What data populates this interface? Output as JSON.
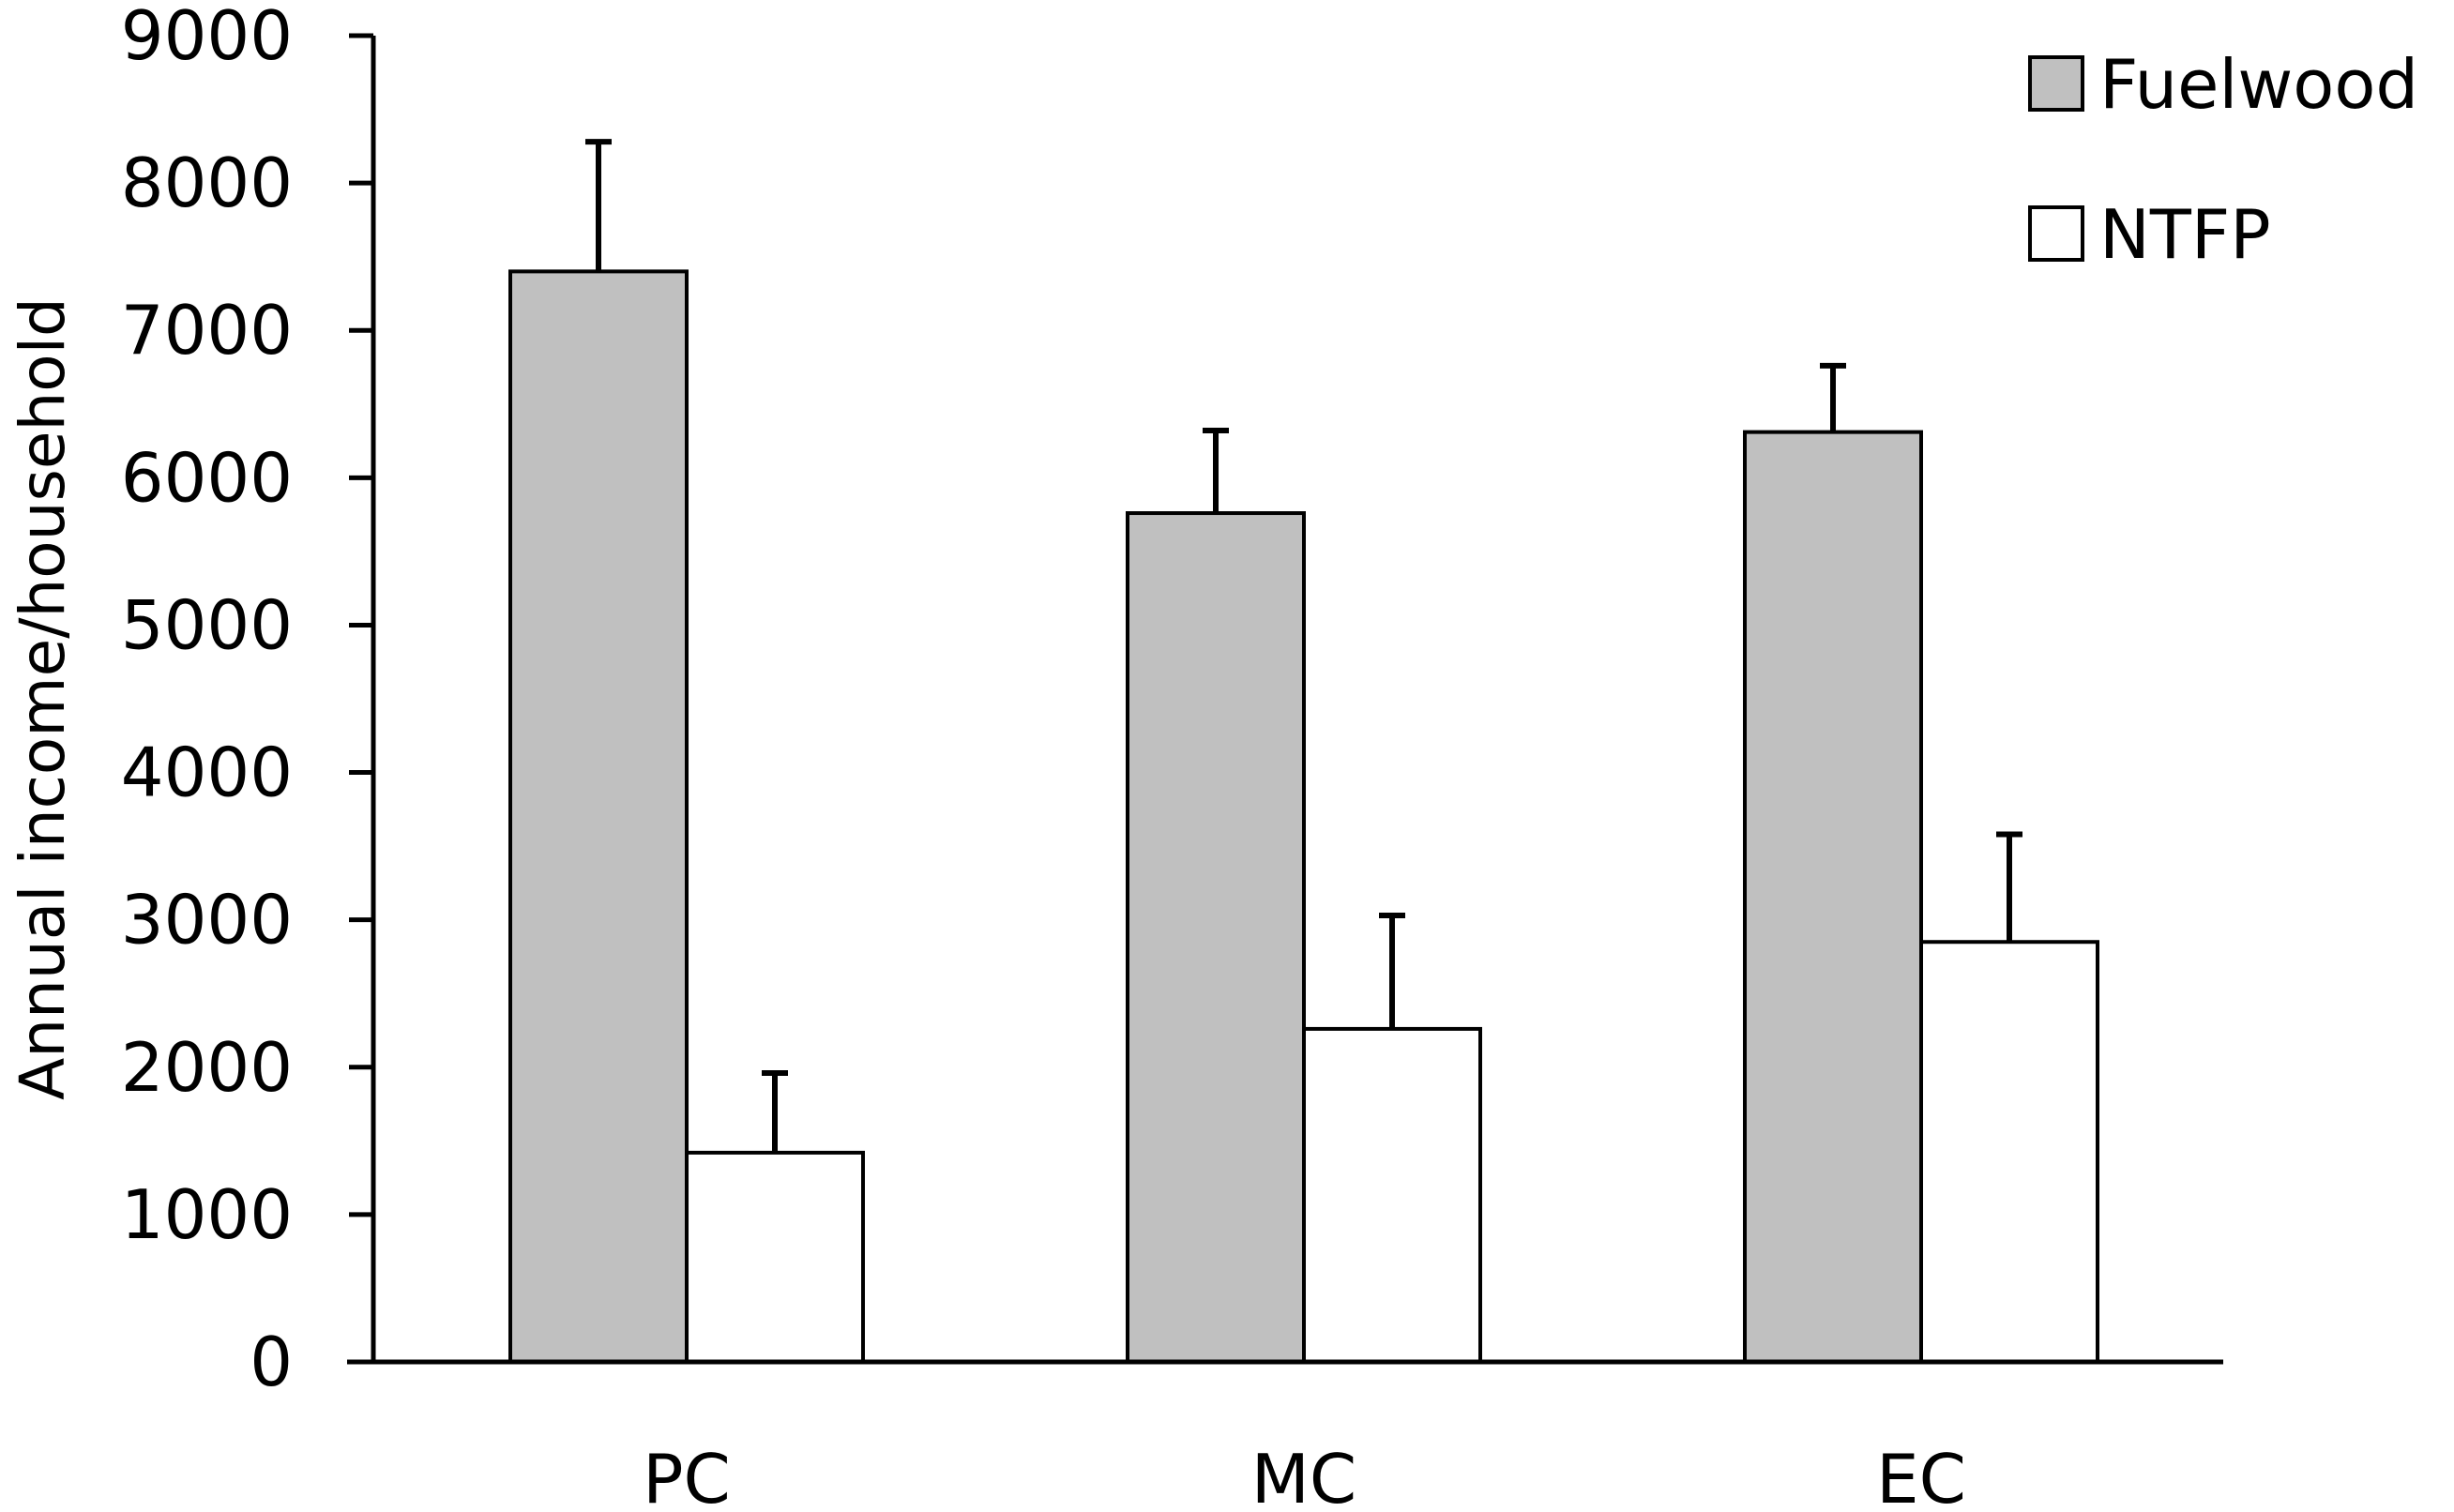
{
  "chart_data": {
    "type": "bar",
    "title": "",
    "xlabel": "",
    "ylabel": "Annual income/household",
    "ylim": [
      0,
      9000
    ],
    "yticks": [
      0,
      1000,
      2000,
      3000,
      4000,
      5000,
      6000,
      7000,
      8000,
      9000
    ],
    "categories": [
      "PC",
      "MC",
      "EC"
    ],
    "grid": false,
    "legend_position": "top-right",
    "series": [
      {
        "name": "Fuelwood",
        "color": "#c0c0c0",
        "values": [
          7400,
          5760,
          6310
        ],
        "errors": [
          880,
          560,
          450
        ]
      },
      {
        "name": "NTFP",
        "color": "#ffffff",
        "values": [
          1420,
          2260,
          2850
        ],
        "errors": [
          540,
          770,
          730
        ]
      }
    ]
  }
}
